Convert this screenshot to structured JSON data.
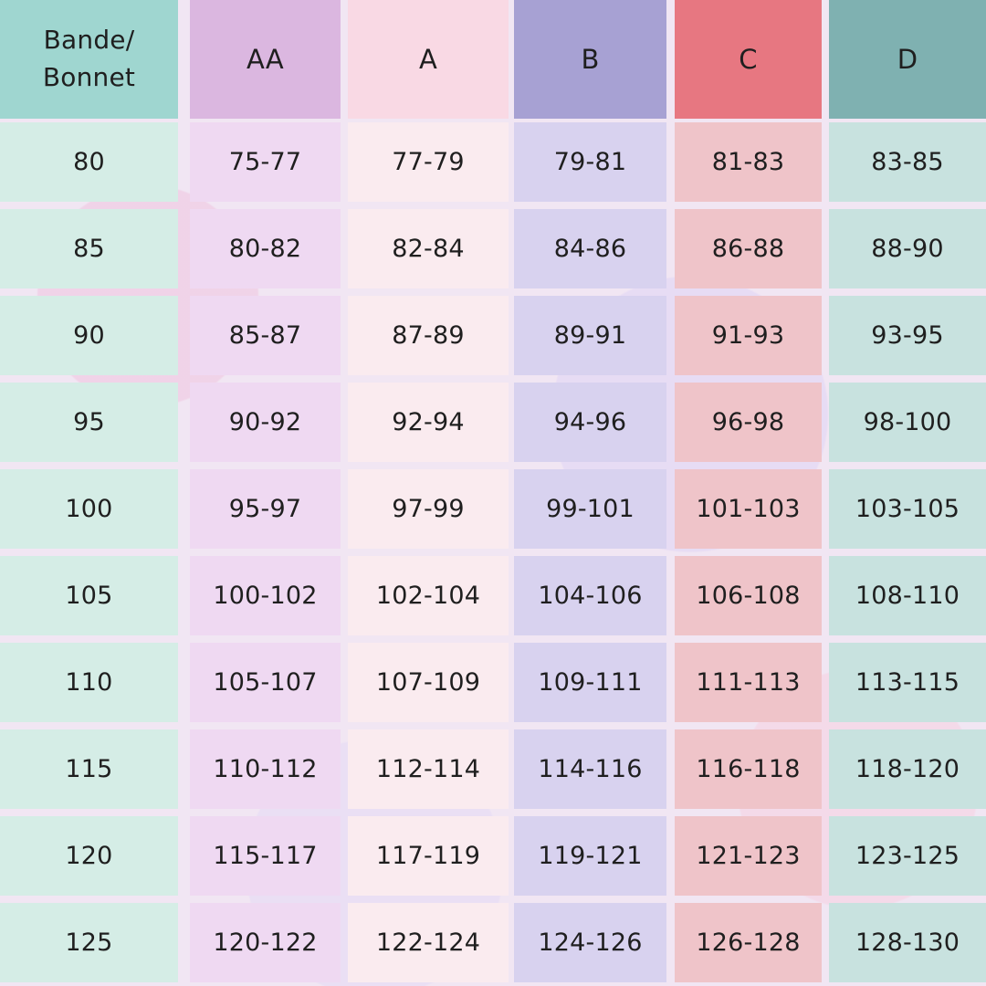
{
  "chart_data": {
    "type": "table",
    "columns": [
      "Bande/\nBonnet",
      "AA",
      "A",
      "B",
      "C",
      "D"
    ],
    "rows": [
      [
        "80",
        "75-77",
        "77-79",
        "79-81",
        "81-83",
        "83-85"
      ],
      [
        "85",
        "80-82",
        "82-84",
        "84-86",
        "86-88",
        "88-90"
      ],
      [
        "90",
        "85-87",
        "87-89",
        "89-91",
        "91-93",
        "93-95"
      ],
      [
        "95",
        "90-92",
        "92-94",
        "94-96",
        "96-98",
        "98-100"
      ],
      [
        "100",
        "95-97",
        "97-99",
        "99-101",
        "101-103",
        "103-105"
      ],
      [
        "105",
        "100-102",
        "102-104",
        "104-106",
        "106-108",
        "108-110"
      ],
      [
        "110",
        "105-107",
        "107-109",
        "109-111",
        "111-113",
        "113-115"
      ],
      [
        "115",
        "110-112",
        "112-114",
        "114-116",
        "116-118",
        "118-120"
      ],
      [
        "120",
        "115-117",
        "117-119",
        "119-121",
        "121-123",
        "123-125"
      ],
      [
        "125",
        "120-122",
        "122-124",
        "124-126",
        "126-128",
        "128-130"
      ]
    ],
    "colors": {
      "header": [
        "#9fd6d0",
        "#dbb7e0",
        "#f9d9e4",
        "#a7a1d3",
        "#e77781",
        "#7fb1b1"
      ],
      "cells": [
        "#d5ede6",
        "#efd9f2",
        "#faebef",
        "#d8d2ef",
        "#efc4c9",
        "#c8e2df"
      ],
      "background": "#f1e6f3"
    }
  }
}
